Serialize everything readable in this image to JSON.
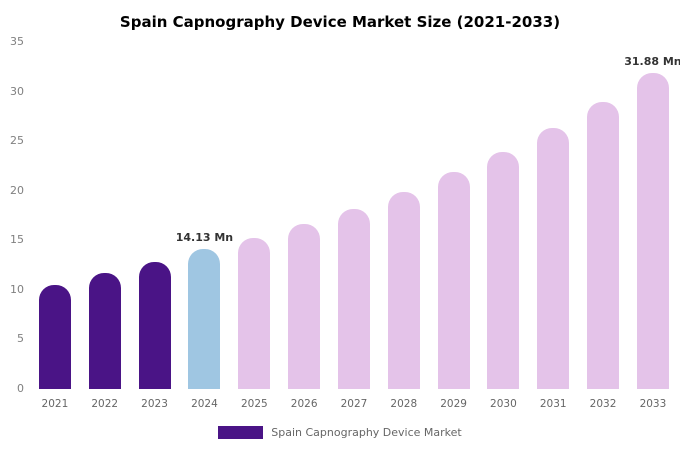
{
  "chart_data": {
    "type": "bar",
    "title": "Spain Capnography Device Market Size (2021-2033)",
    "categories": [
      "2021",
      "2022",
      "2023",
      "2024",
      "2025",
      "2026",
      "2027",
      "2028",
      "2029",
      "2030",
      "2031",
      "2032",
      "2033"
    ],
    "values": [
      10.5,
      11.7,
      12.8,
      14.13,
      15.2,
      16.6,
      18.2,
      19.9,
      21.9,
      23.9,
      26.3,
      28.9,
      31.88
    ],
    "ylim": [
      0,
      35
    ],
    "yticks": [
      0,
      5,
      10,
      15,
      20,
      25,
      30,
      35
    ],
    "grid": false,
    "legend": {
      "label": "Spain Capnography Device Market",
      "position": "bottom",
      "swatch_color": "#4a1486"
    },
    "bar_colors": [
      "#4a1486",
      "#4a1486",
      "#4a1486",
      "#9fc6e2",
      "#e4c3e9",
      "#e4c3e9",
      "#e4c3e9",
      "#e4c3e9",
      "#e4c3e9",
      "#e4c3e9",
      "#e4c3e9",
      "#e4c3e9",
      "#e4c3e9"
    ],
    "annotations": [
      {
        "index": 3,
        "text": "14.13 Mn"
      },
      {
        "index": 12,
        "text": "31.88 Mn"
      }
    ],
    "colors": {
      "historical": "#4a1486",
      "base_year": "#9fc6e2",
      "forecast": "#e4c3e9"
    }
  }
}
